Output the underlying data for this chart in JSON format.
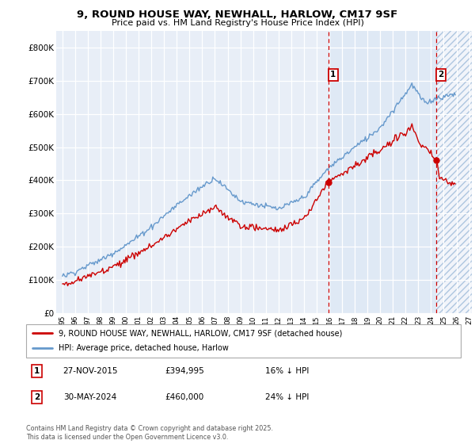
{
  "title": "9, ROUND HOUSE WAY, NEWHALL, HARLOW, CM17 9SF",
  "subtitle": "Price paid vs. HM Land Registry's House Price Index (HPI)",
  "ylim": [
    0,
    850000
  ],
  "yticks": [
    0,
    100000,
    200000,
    300000,
    400000,
    500000,
    600000,
    700000,
    800000
  ],
  "ytick_labels": [
    "£0",
    "£100K",
    "£200K",
    "£300K",
    "£400K",
    "£500K",
    "£600K",
    "£700K",
    "£800K"
  ],
  "legend_house": "9, ROUND HOUSE WAY, NEWHALL, HARLOW, CM17 9SF (detached house)",
  "legend_hpi": "HPI: Average price, detached house, Harlow",
  "annotation1_date": "27-NOV-2015",
  "annotation1_price": "£394,995",
  "annotation1_hpi": "16% ↓ HPI",
  "annotation2_date": "30-MAY-2024",
  "annotation2_price": "£460,000",
  "annotation2_hpi": "24% ↓ HPI",
  "footer": "Contains HM Land Registry data © Crown copyright and database right 2025.\nThis data is licensed under the Open Government Licence v3.0.",
  "house_color": "#cc0000",
  "hpi_color": "#6699cc",
  "background_plot": "#e8eef7",
  "vline1_x": 2015.917,
  "vline2_x": 2024.417,
  "sale1_y": 394995,
  "sale2_y": 460000,
  "xlim_left": 1994.5,
  "xlim_right": 2027.2,
  "xtick_years": [
    1995,
    1996,
    1997,
    1998,
    1999,
    2000,
    2001,
    2002,
    2003,
    2004,
    2005,
    2006,
    2007,
    2008,
    2009,
    2010,
    2011,
    2012,
    2013,
    2014,
    2015,
    2016,
    2017,
    2018,
    2019,
    2020,
    2021,
    2022,
    2023,
    2024,
    2025,
    2026,
    2027
  ]
}
